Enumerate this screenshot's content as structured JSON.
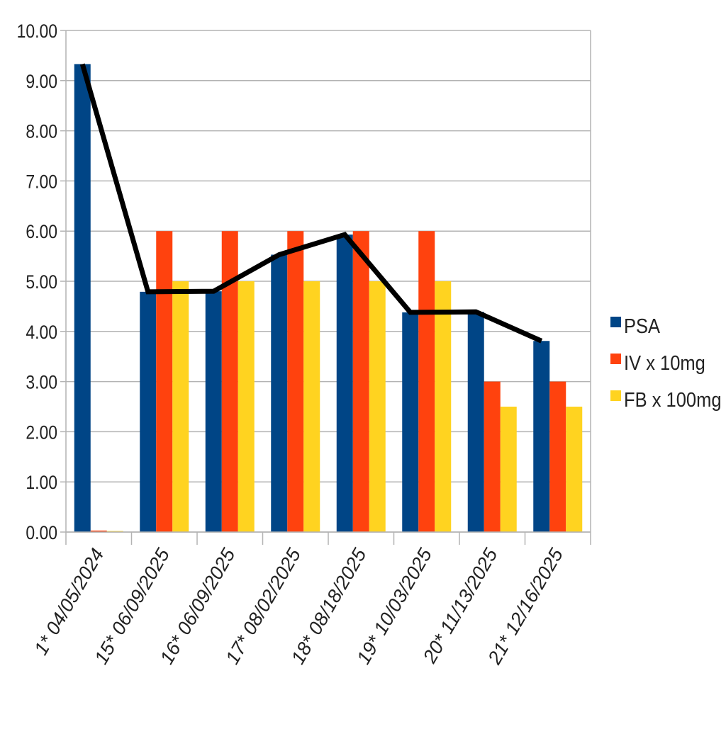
{
  "chart_data": {
    "type": "bar",
    "title": "",
    "xlabel": "",
    "ylabel": "",
    "ylim": [
      0,
      10
    ],
    "yticks": [
      "0.00",
      "1.00",
      "2.00",
      "3.00",
      "4.00",
      "5.00",
      "6.00",
      "7.00",
      "8.00",
      "9.00",
      "10.00"
    ],
    "grid": true,
    "legend_position": "right",
    "categories": [
      "1* 04/05/2024",
      "15* 06/09/2025",
      "16* 06/09/2025",
      "17* 08/02/2025",
      "18* 08/18/2025",
      "19* 10/03/2025",
      "20* 11/13/2025",
      "21* 12/16/2025"
    ],
    "series": [
      {
        "name": "PSA",
        "color": "#004586",
        "values": [
          9.33,
          4.79,
          4.8,
          5.53,
          5.93,
          4.38,
          4.39,
          3.81
        ]
      },
      {
        "name": "IV x 10mg",
        "color": "#ff420e",
        "values": [
          0.03,
          6,
          6,
          6,
          6,
          6,
          3,
          3
        ]
      },
      {
        "name": "FB x 100mg",
        "color": "#ffd320",
        "values": [
          0.02,
          5,
          5,
          5,
          5,
          5,
          2.5,
          2.5
        ]
      }
    ],
    "line_overlay": {
      "of_series": "PSA",
      "color": "#000000"
    }
  }
}
